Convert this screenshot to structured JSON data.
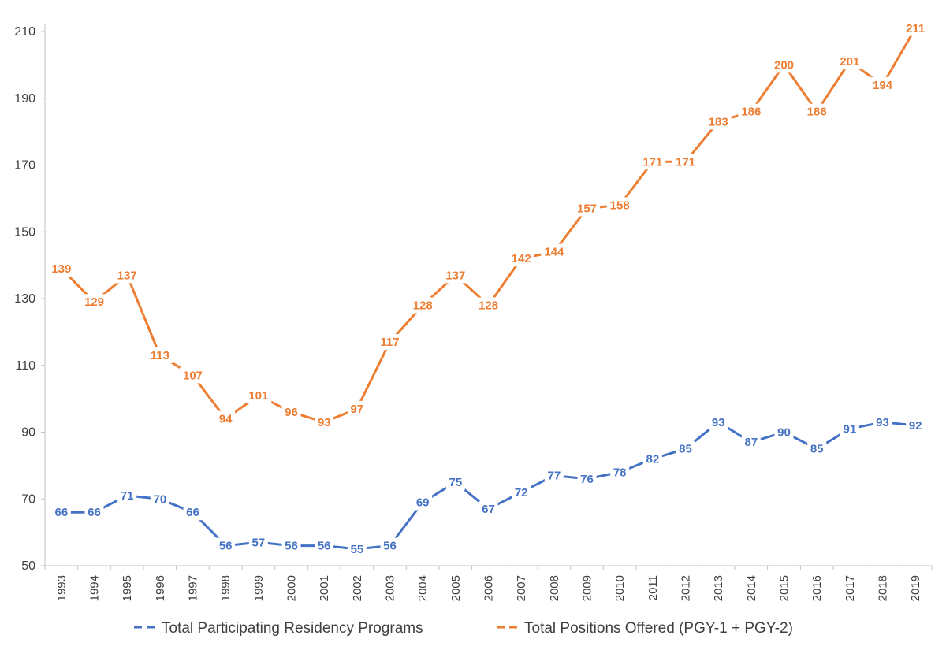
{
  "chart_data": {
    "type": "line",
    "title": "",
    "xlabel": "",
    "ylabel": "",
    "x": [
      "1993",
      "1994",
      "1995",
      "1996",
      "1997",
      "1998",
      "1999",
      "2000",
      "2001",
      "2002",
      "2003",
      "2004",
      "2005",
      "2006",
      "2007",
      "2008",
      "2009",
      "2010",
      "2011",
      "2012",
      "2013",
      "2014",
      "2015",
      "2016",
      "2017",
      "2018",
      "2019"
    ],
    "ylim": [
      50,
      210
    ],
    "yticks": [
      "50",
      "70",
      "90",
      "110",
      "130",
      "150",
      "170",
      "190",
      "210"
    ],
    "grid": false,
    "legend_position": "bottom",
    "series": [
      {
        "name": "Total Participating Residency Programs",
        "color": "#4472C4",
        "values": [
          66,
          66,
          71,
          70,
          66,
          56,
          57,
          56,
          56,
          55,
          56,
          69,
          75,
          67,
          72,
          77,
          76,
          78,
          82,
          85,
          93,
          87,
          90,
          85,
          91,
          93,
          92
        ]
      },
      {
        "name": "Total Positions Offered (PGY-1 + PGY-2)",
        "color": "#ED7D31",
        "values": [
          139,
          129,
          137,
          113,
          107,
          94,
          101,
          96,
          93,
          97,
          117,
          128,
          137,
          128,
          142,
          144,
          157,
          158,
          171,
          171,
          183,
          186,
          200,
          186,
          201,
          194,
          211
        ]
      }
    ]
  }
}
